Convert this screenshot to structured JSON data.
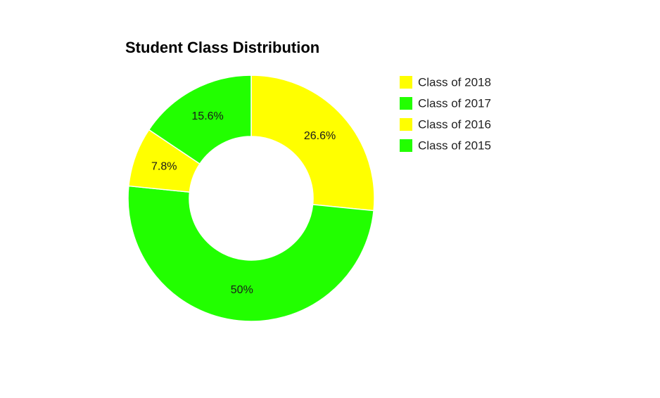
{
  "chart_data": {
    "type": "pie",
    "variant": "donut",
    "title": "Student Class Distribution",
    "slices": [
      {
        "label": "Class of 2018",
        "value": 26.6,
        "display": "26.6%",
        "color": "#ffff00"
      },
      {
        "label": "Class of 2015",
        "value": 50.0,
        "display": "50%",
        "color": "#22ff00"
      },
      {
        "label": "Class of 2016",
        "value": 7.8,
        "display": "7.8%",
        "color": "#ffff00"
      },
      {
        "label": "Class of 2017",
        "value": 15.6,
        "display": "15.6%",
        "color": "#22ff00"
      }
    ],
    "legend": {
      "placement": "right",
      "entries": [
        {
          "label": "Class of 2018",
          "color": "#ffff00"
        },
        {
          "label": "Class of 2017",
          "color": "#22ff00"
        },
        {
          "label": "Class of 2016",
          "color": "#ffff00"
        },
        {
          "label": "Class of 2015",
          "color": "#22ff00"
        }
      ]
    }
  }
}
